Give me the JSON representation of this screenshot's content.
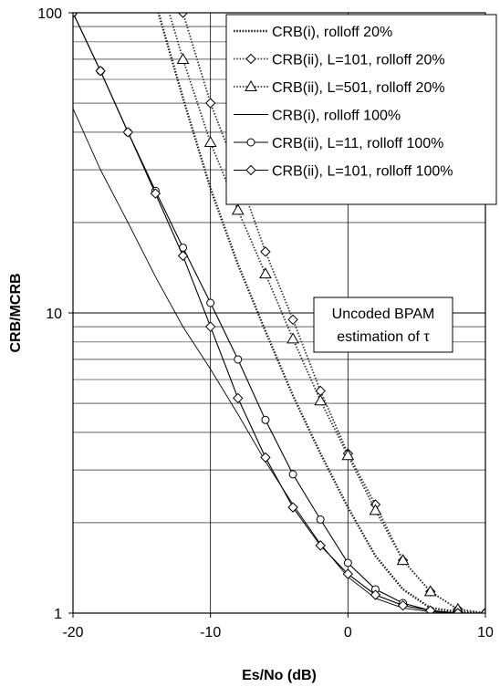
{
  "chart_data": {
    "type": "line",
    "title": "",
    "xlabel": "Es/No (dB)",
    "ylabel": "CRB/MCRB",
    "xlim": [
      -20,
      10
    ],
    "ylim": [
      1,
      100
    ],
    "yscale": "log",
    "grid": true,
    "legend_position": "top-right",
    "x_ticks": [
      "-20",
      "-10",
      "0",
      "10"
    ],
    "y_ticks": [
      "1",
      "10",
      "100"
    ],
    "annotation": {
      "line1": "Uncoded BPAM",
      "line2": "estimation of τ"
    },
    "series": [
      {
        "name": "CRB(i), rolloff 20%",
        "style": "dotted-thick",
        "marker": "none",
        "x": [
          -14.5,
          -12,
          -10,
          -8,
          -6,
          -4,
          -2,
          0,
          2,
          4,
          6,
          8,
          10
        ],
        "y": [
          130,
          52,
          26,
          14.5,
          8.7,
          5.3,
          3.4,
          2.25,
          1.55,
          1.2,
          1.04,
          1.01,
          1.0
        ]
      },
      {
        "name": "CRB(ii), L=101, rolloff 20%",
        "style": "dotted",
        "marker": "diamond",
        "x": [
          -12.8,
          -12,
          -10,
          -8,
          -6,
          -4,
          -2,
          0,
          2,
          4,
          6,
          8,
          10
        ],
        "y": [
          140,
          100,
          50,
          29,
          16,
          9.5,
          5.5,
          3.4,
          2.3,
          1.5,
          1.18,
          1.03,
          1.0
        ]
      },
      {
        "name": "CRB(ii), L=501, rolloff 20%",
        "style": "dotted",
        "marker": "triangle",
        "x": [
          -13.5,
          -12,
          -10,
          -8,
          -6,
          -4,
          -2,
          0,
          2,
          4,
          6,
          8,
          10
        ],
        "y": [
          120,
          70,
          37,
          22,
          13.5,
          8.2,
          5.1,
          3.35,
          2.2,
          1.5,
          1.18,
          1.03,
          1.0
        ]
      },
      {
        "name": "CRB(i), rolloff 100%",
        "style": "solid-thin",
        "marker": "none",
        "x": [
          -20,
          -18,
          -16,
          -14,
          -12,
          -10,
          -8,
          -6,
          -4,
          -2,
          0,
          2,
          4,
          6,
          8,
          10
        ],
        "y": [
          48,
          30,
          20,
          13.2,
          9,
          6.5,
          4.6,
          3.2,
          2.3,
          1.7,
          1.32,
          1.12,
          1.04,
          1.01,
          1.0,
          1.0
        ]
      },
      {
        "name": "CRB(ii), L=11, rolloff 100%",
        "style": "solid",
        "marker": "circle",
        "x": [
          -20,
          -18,
          -16,
          -14,
          -12,
          -10,
          -8,
          -6,
          -4,
          -2,
          0,
          2,
          4,
          6,
          8,
          10
        ],
        "y": [
          100,
          64,
          40,
          25.5,
          16.5,
          10.8,
          7,
          4.4,
          2.9,
          2.05,
          1.47,
          1.2,
          1.08,
          1.02,
          1.0,
          1.0
        ]
      },
      {
        "name": "CRB(ii), L=101, rolloff 100%",
        "style": "solid",
        "marker": "diamond",
        "x": [
          -20,
          -18,
          -16,
          -14,
          -12,
          -10,
          -8,
          -6,
          -4,
          -2,
          0,
          2,
          4,
          6,
          8,
          10
        ],
        "y": [
          100,
          64,
          40,
          25,
          15.5,
          9,
          5.2,
          3.3,
          2.25,
          1.68,
          1.35,
          1.15,
          1.06,
          1.02,
          1.0,
          1.0
        ]
      }
    ]
  }
}
